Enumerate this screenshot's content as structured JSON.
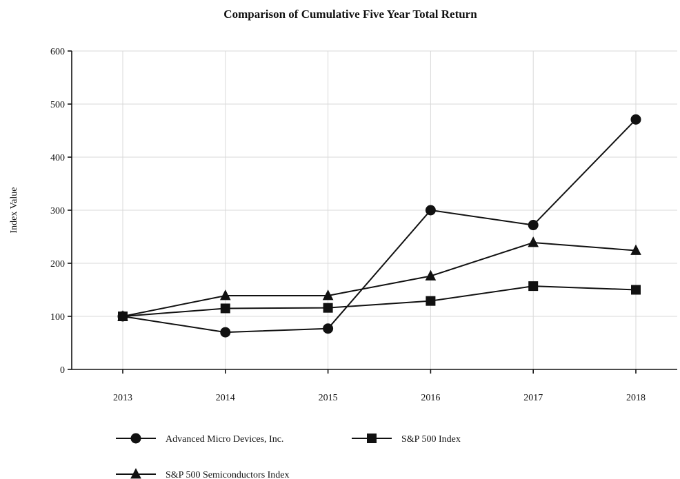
{
  "chart_data": {
    "type": "line",
    "title": "Comparison of Cumulative Five Year Total Return",
    "xlabel": "",
    "ylabel": "Index Value",
    "x": [
      "2013",
      "2014",
      "2015",
      "2016",
      "2017",
      "2018"
    ],
    "ylim": [
      0,
      600
    ],
    "yticks": [
      0,
      100,
      200,
      300,
      400,
      500,
      600
    ],
    "grid": true,
    "legend_position": "bottom",
    "series": [
      {
        "name": "Advanced Micro Devices, Inc.",
        "marker": "circle",
        "values": [
          100,
          70,
          77,
          300,
          272,
          471
        ]
      },
      {
        "name": "S&P 500 Index",
        "marker": "square",
        "values": [
          100,
          115,
          116,
          129,
          157,
          150
        ]
      },
      {
        "name": "S&P 500 Semiconductors Index",
        "marker": "triangle",
        "values": [
          100,
          139,
          139,
          176,
          239,
          224
        ]
      }
    ]
  }
}
